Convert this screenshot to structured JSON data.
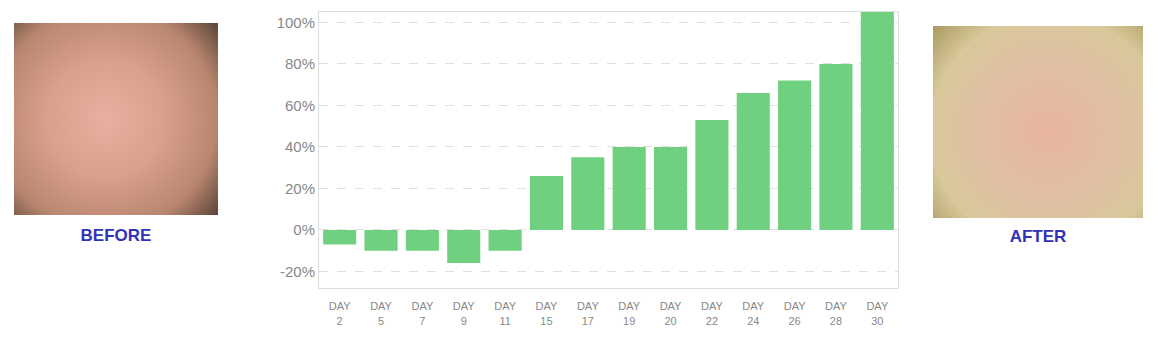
{
  "panels": [
    {
      "label": "BEFORE"
    },
    {
      "label": "AFTER"
    }
  ],
  "chart_data": {
    "type": "bar",
    "categories": [
      "DAY 2",
      "DAY 5",
      "DAY 7",
      "DAY 9",
      "DAY 11",
      "DAY 15",
      "DAY 17",
      "DAY 19",
      "DAY 20",
      "DAY 22",
      "DAY 24",
      "DAY 26",
      "DAY 28",
      "DAY 30"
    ],
    "values": [
      -7,
      -10,
      -10,
      -16,
      -10,
      26,
      35,
      40,
      40,
      53,
      66,
      72,
      80,
      105
    ],
    "color": "#6fd07f",
    "ylim": [
      -28,
      105
    ],
    "yticks": [
      {
        "value": -20,
        "label": "-20%"
      },
      {
        "value": 0,
        "label": "0%"
      },
      {
        "value": 20,
        "label": "20%"
      },
      {
        "value": 40,
        "label": "40%"
      },
      {
        "value": 60,
        "label": "60%"
      },
      {
        "value": 80,
        "label": "80%"
      },
      {
        "value": 100,
        "label": "100%"
      }
    ],
    "grid": true
  }
}
